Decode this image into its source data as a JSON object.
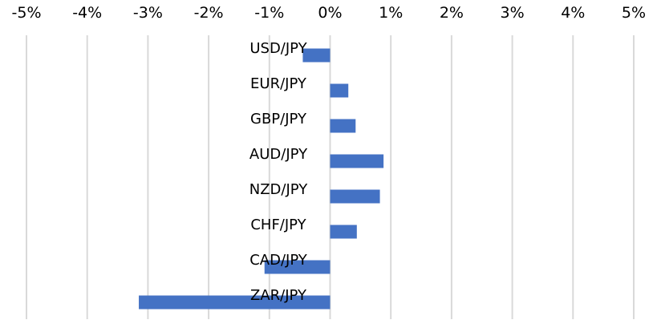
{
  "chart_data": {
    "type": "bar",
    "orientation": "horizontal",
    "xlim": [
      -5,
      5
    ],
    "x_ticks": [
      -5,
      -4,
      -3,
      -2,
      -1,
      0,
      1,
      2,
      3,
      4,
      5
    ],
    "x_tick_labels": [
      "-5%",
      "-4%",
      "-3%",
      "-2%",
      "-1%",
      "0%",
      "1%",
      "2%",
      "3%",
      "4%",
      "5%"
    ],
    "x_axis_position": "top",
    "grid": true,
    "categories": [
      "USD/JPY",
      "EUR/JPY",
      "GBP/JPY",
      "AUD/JPY",
      "NZD/JPY",
      "CHF/JPY",
      "CAD/JPY",
      "ZAR/JPY"
    ],
    "values": [
      -0.45,
      0.3,
      0.42,
      0.88,
      0.82,
      0.44,
      -1.08,
      -3.15
    ],
    "bar_color": "#4472c4",
    "grid_color": "#d9d9d9"
  }
}
